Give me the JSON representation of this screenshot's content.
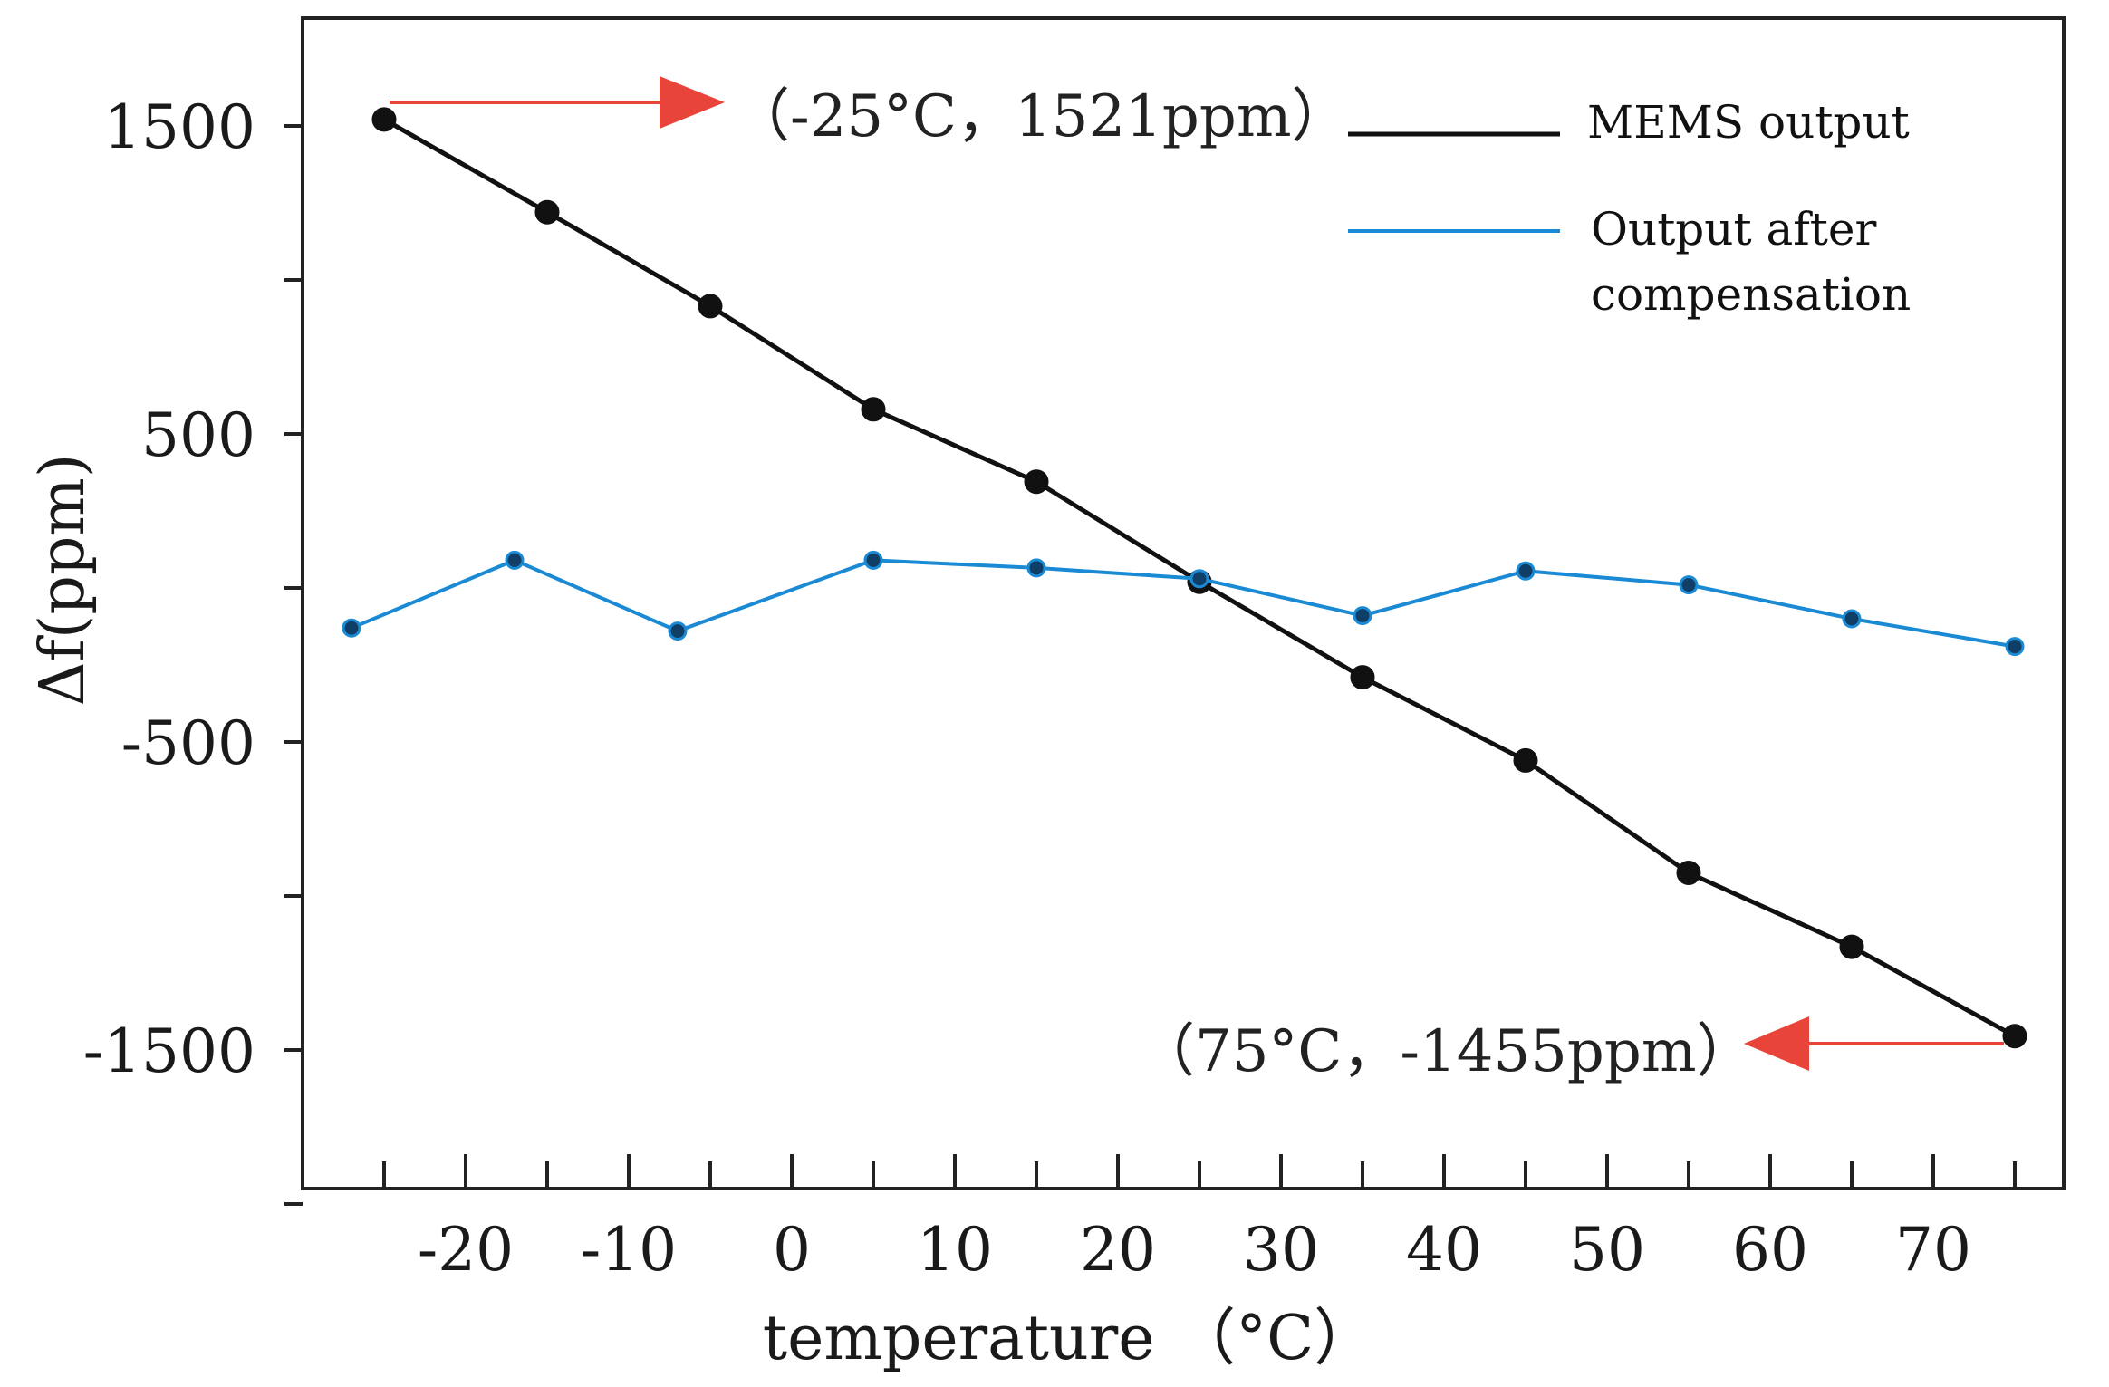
{
  "chart_data": {
    "type": "line",
    "title": "",
    "xlabel": "temperature （°C）",
    "ylabel": "Δf(ppm)",
    "xlim": [
      -30,
      78
    ],
    "ylim": [
      -1950,
      1850
    ],
    "x_ticks": [
      -20,
      -10,
      0,
      10,
      20,
      30,
      40,
      50,
      60,
      70
    ],
    "x_tick_labels": [
      "-20",
      "-10",
      "0",
      "10",
      "20",
      "30",
      "40",
      "50",
      "60",
      "70"
    ],
    "y_ticks": [
      1500,
      500,
      -500,
      -1500
    ],
    "y_tick_labels": [
      "1500",
      "500",
      "-500",
      "-1500"
    ],
    "series": [
      {
        "name": "MEMS output",
        "color": "#111111",
        "x": [
          -25,
          -15,
          -5,
          5,
          15,
          25,
          35,
          45,
          55,
          65,
          75
        ],
        "values": [
          1521,
          1220,
          915,
          580,
          345,
          20,
          -290,
          -560,
          -925,
          -1165,
          -1455
        ]
      },
      {
        "name": "Output after compensation",
        "color": "#1a8ad4",
        "x": [
          -27,
          -17,
          -7,
          5,
          15,
          25,
          35,
          45,
          55,
          65,
          75
        ],
        "values": [
          -130,
          90,
          -140,
          90,
          65,
          30,
          -90,
          55,
          10,
          -100,
          -190
        ]
      }
    ],
    "legend": {
      "position": "top-right",
      "entries": [
        "MEMS output",
        "Output after compensation"
      ]
    },
    "annotations": [
      {
        "text": "（-25°C，1521ppm）",
        "point": [
          -25,
          1521
        ],
        "arrow_color": "#e8443a"
      },
      {
        "text": "（75°C，-1455ppm）",
        "point": [
          75,
          -1455
        ],
        "arrow_color": "#e8443a"
      }
    ]
  }
}
